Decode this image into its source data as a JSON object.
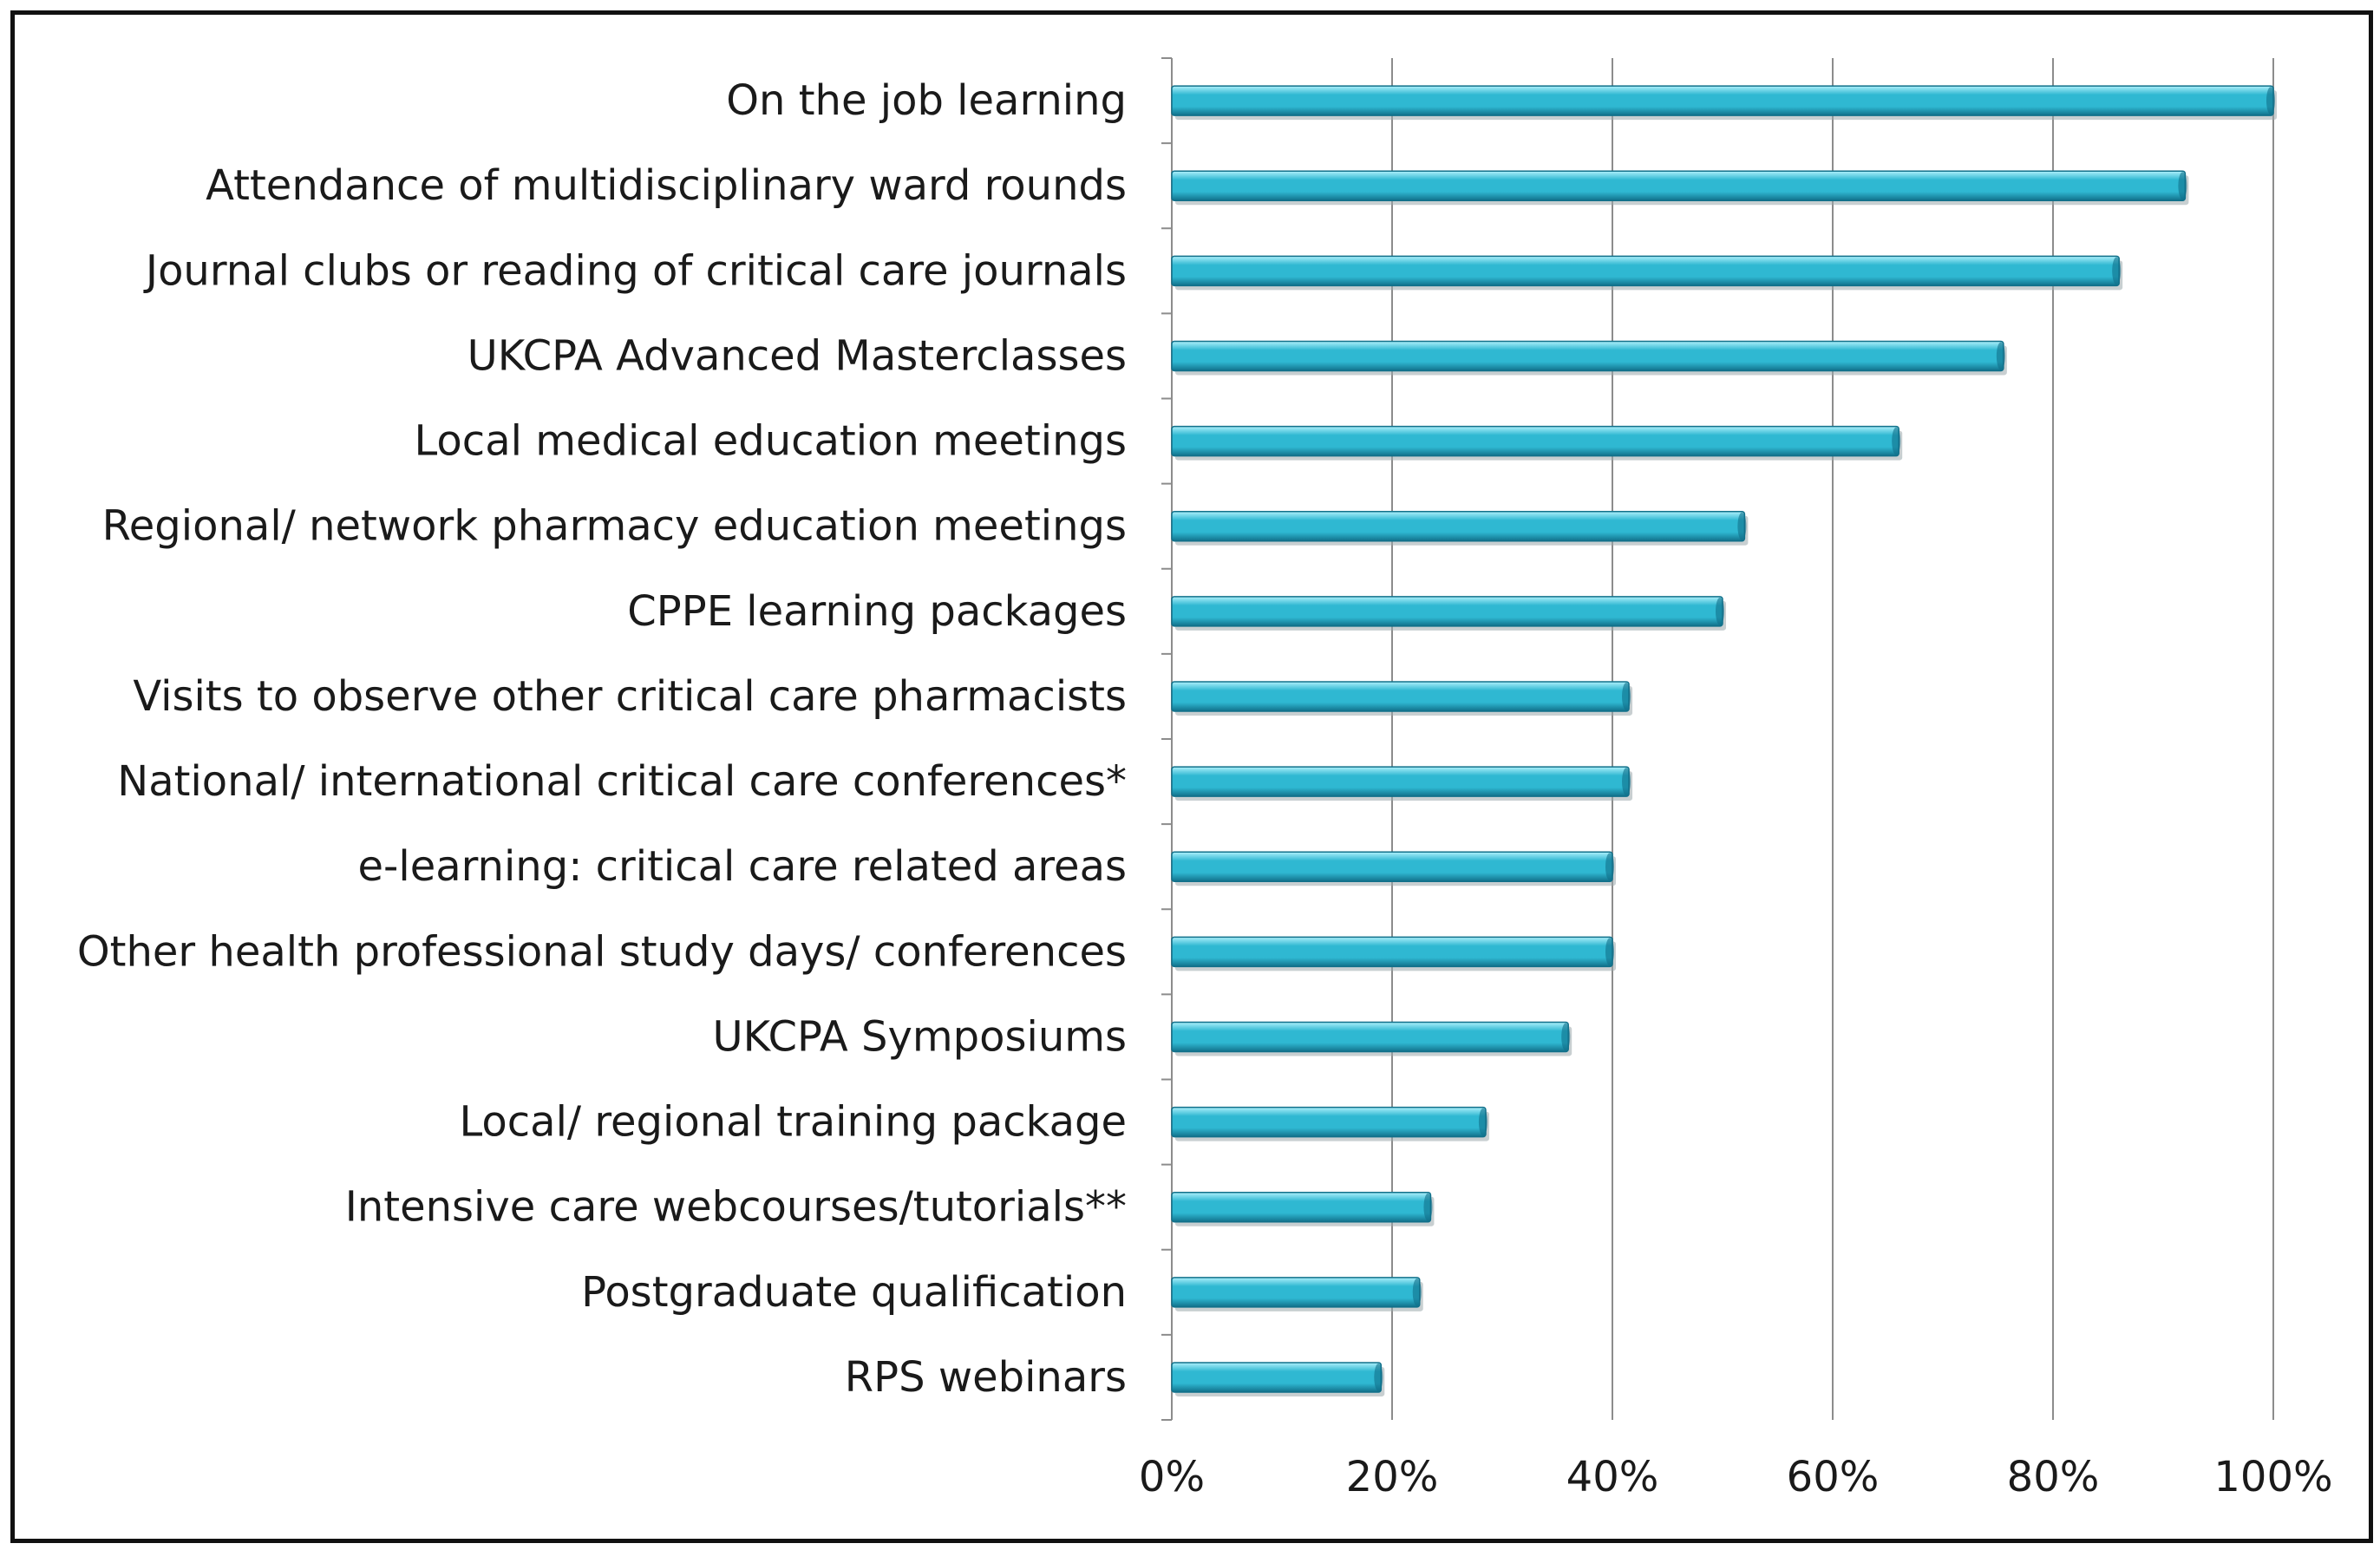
{
  "chart_data": {
    "type": "bar",
    "orientation": "horizontal",
    "title": "",
    "xlabel": "",
    "ylabel": "",
    "categories": [
      "On the job learning",
      "Attendance of multidisciplinary ward rounds",
      "Journal clubs or reading of critical care journals",
      "UKCPA Advanced Masterclasses",
      "Local medical education meetings",
      "Regional/ network pharmacy education meetings",
      "CPPE learning packages",
      "Visits to observe other critical care pharmacists",
      "National/ international critical care conferences*",
      "e-learning: critical care related areas",
      "Other health professional study days/ conferences",
      "UKCPA Symposiums",
      "Local/ regional training package",
      "Intensive care webcourses/tutorials**",
      "Postgraduate qualification",
      "RPS webinars"
    ],
    "values": [
      100,
      92,
      86,
      75.5,
      66,
      52,
      50,
      41.5,
      41.5,
      40,
      40,
      36,
      28.5,
      23.5,
      22.5,
      19
    ],
    "xlim": [
      0,
      100
    ],
    "xticks": [
      "0%",
      "20%",
      "40%",
      "60%",
      "80%",
      "100%"
    ],
    "grid": "vertical",
    "legend": "none",
    "colors": {
      "bar_light": "#aef0fb",
      "bar_main": "#2fb8d2",
      "bar_dark": "#11708a",
      "grid": "#8c8c8c",
      "axis": "#8c8c8c",
      "text": "#1a1a1a",
      "frame": "#111111"
    }
  }
}
